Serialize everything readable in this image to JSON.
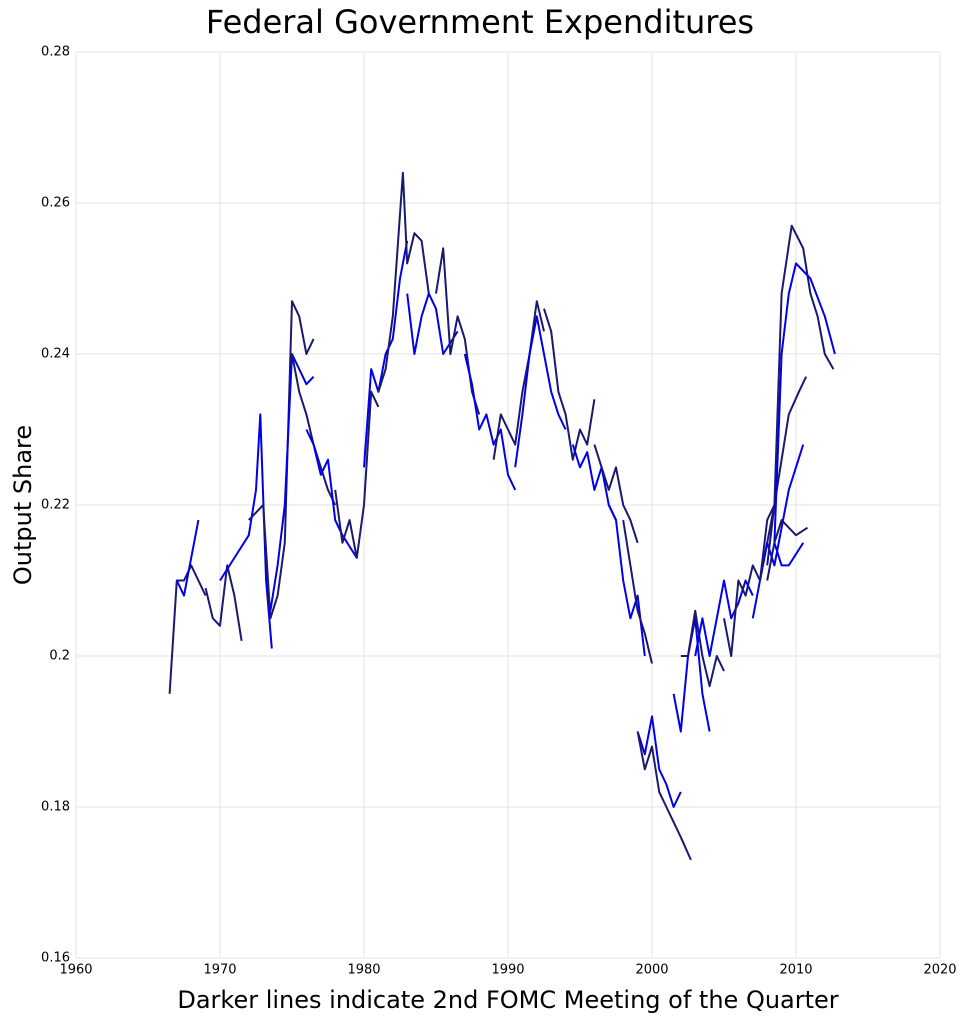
{
  "chart_data": {
    "type": "line",
    "title": "Federal Government Expenditures",
    "xlabel": "Darker lines indicate 2nd FOMC Meeting of the Quarter",
    "ylabel": "Output Share",
    "xlim": [
      1960,
      2020
    ],
    "xticks": [
      1960,
      1970,
      1980,
      1990,
      2000,
      2010,
      2020
    ],
    "ylim": [
      0.16,
      0.28
    ],
    "yticks": [
      0.16,
      0.18,
      0.2,
      0.22,
      0.24,
      0.26,
      0.28
    ],
    "grid": true,
    "series": [
      {
        "color": "#191970",
        "x": [
          1966.5,
          1967,
          1967.5,
          1968,
          1968.5,
          1969
        ],
        "values": [
          0.195,
          0.21,
          0.21,
          0.212,
          0.21,
          0.208
        ]
      },
      {
        "color": "#0000ee",
        "x": [
          1967,
          1967.5,
          1968,
          1968.5
        ],
        "values": [
          0.21,
          0.208,
          0.213,
          0.218
        ]
      },
      {
        "color": "#191970",
        "x": [
          1969,
          1969.5,
          1970,
          1970.5,
          1971,
          1971.5
        ],
        "values": [
          0.209,
          0.205,
          0.204,
          0.212,
          0.208,
          0.202
        ]
      },
      {
        "color": "#0000ee",
        "x": [
          1970,
          1971,
          1972,
          1972.5,
          1972.8,
          1973.2,
          1973.6
        ],
        "values": [
          0.21,
          0.213,
          0.216,
          0.222,
          0.232,
          0.21,
          0.201
        ]
      },
      {
        "color": "#191970",
        "x": [
          1972,
          1973,
          1973.5,
          1974,
          1974.5,
          1975,
          1975.5,
          1976,
          1976.5
        ],
        "values": [
          0.218,
          0.22,
          0.205,
          0.208,
          0.215,
          0.247,
          0.245,
          0.24,
          0.242
        ]
      },
      {
        "color": "#0000ee",
        "x": [
          1973.5,
          1974,
          1974.5,
          1975,
          1975.5,
          1976,
          1976.5
        ],
        "values": [
          0.206,
          0.212,
          0.22,
          0.24,
          0.238,
          0.236,
          0.237
        ]
      },
      {
        "color": "#191970",
        "x": [
          1975,
          1975.5,
          1976,
          1976.5,
          1977,
          1977.5,
          1978
        ],
        "values": [
          0.24,
          0.235,
          0.232,
          0.228,
          0.225,
          0.222,
          0.22
        ]
      },
      {
        "color": "#0000ee",
        "x": [
          1976,
          1976.5,
          1977,
          1977.5,
          1978,
          1978.5,
          1979.5
        ],
        "values": [
          0.23,
          0.228,
          0.224,
          0.226,
          0.218,
          0.216,
          0.213
        ]
      },
      {
        "color": "#191970",
        "x": [
          1978,
          1978.5,
          1979,
          1979.5,
          1980,
          1980.5,
          1981
        ],
        "values": [
          0.222,
          0.215,
          0.218,
          0.213,
          0.22,
          0.235,
          0.233
        ]
      },
      {
        "color": "#0000ee",
        "x": [
          1980,
          1980.5,
          1981,
          1981.5,
          1982,
          1982.5,
          1983
        ],
        "values": [
          0.225,
          0.238,
          0.235,
          0.24,
          0.242,
          0.25,
          0.255
        ]
      },
      {
        "color": "#191970",
        "x": [
          1981,
          1981.5,
          1982,
          1982.7,
          1983,
          1983.5,
          1984,
          1984.5
        ],
        "values": [
          0.235,
          0.238,
          0.245,
          0.264,
          0.252,
          0.256,
          0.255,
          0.248
        ]
      },
      {
        "color": "#0000ee",
        "x": [
          1983,
          1983.5,
          1984,
          1984.5,
          1985,
          1985.5,
          1986.5
        ],
        "values": [
          0.248,
          0.24,
          0.245,
          0.248,
          0.246,
          0.24,
          0.243
        ]
      },
      {
        "color": "#191970",
        "x": [
          1985,
          1985.5,
          1986,
          1986.5,
          1987,
          1987.5,
          1988
        ],
        "values": [
          0.248,
          0.254,
          0.24,
          0.245,
          0.242,
          0.235,
          0.232
        ]
      },
      {
        "color": "#0000ee",
        "x": [
          1987,
          1987.5,
          1988,
          1988.5,
          1989,
          1989.5,
          1990,
          1990.5
        ],
        "values": [
          0.24,
          0.236,
          0.23,
          0.232,
          0.228,
          0.23,
          0.224,
          0.222
        ]
      },
      {
        "color": "#191970",
        "x": [
          1989,
          1989.5,
          1990,
          1990.5,
          1991,
          1991.5,
          1992,
          1992.5
        ],
        "values": [
          0.226,
          0.232,
          0.23,
          0.228,
          0.235,
          0.24,
          0.247,
          0.243
        ]
      },
      {
        "color": "#0000ee",
        "x": [
          1990.5,
          1991,
          1991.5,
          1992,
          1992.5,
          1993,
          1993.5,
          1994
        ],
        "values": [
          0.225,
          0.232,
          0.24,
          0.245,
          0.24,
          0.235,
          0.232,
          0.23
        ]
      },
      {
        "color": "#191970",
        "x": [
          1992.5,
          1993,
          1993.5,
          1994,
          1994.5,
          1995,
          1995.5,
          1996
        ],
        "values": [
          0.246,
          0.243,
          0.235,
          0.232,
          0.226,
          0.23,
          0.228,
          0.234
        ]
      },
      {
        "color": "#0000ee",
        "x": [
          1994.5,
          1995,
          1995.5,
          1996,
          1996.5,
          1997,
          1997.5
        ],
        "values": [
          0.228,
          0.225,
          0.227,
          0.222,
          0.225,
          0.22,
          0.218
        ]
      },
      {
        "color": "#191970",
        "x": [
          1996,
          1996.5,
          1997,
          1997.5,
          1998,
          1998.5,
          1999
        ],
        "values": [
          0.228,
          0.225,
          0.222,
          0.225,
          0.22,
          0.218,
          0.215
        ]
      },
      {
        "color": "#0000ee",
        "x": [
          1997,
          1997.5,
          1998,
          1998.5,
          1999,
          1999.5
        ],
        "values": [
          0.22,
          0.218,
          0.21,
          0.205,
          0.208,
          0.2
        ]
      },
      {
        "color": "#191970",
        "x": [
          1998,
          1998.5,
          1999,
          1999.5,
          2000
        ],
        "values": [
          0.218,
          0.212,
          0.206,
          0.203,
          0.199
        ]
      },
      {
        "color": "#0000ee",
        "x": [
          1999,
          1999.5,
          2000,
          2000.5,
          2001,
          2001.5,
          2002
        ],
        "values": [
          0.19,
          0.187,
          0.192,
          0.185,
          0.183,
          0.18,
          0.182
        ]
      },
      {
        "color": "#191970",
        "x": [
          1999,
          1999.5,
          2000,
          2000.5,
          2001,
          2001.5,
          2002,
          2002.7
        ],
        "values": [
          0.19,
          0.185,
          0.188,
          0.182,
          0.18,
          0.178,
          0.176,
          0.173
        ]
      },
      {
        "color": "#0000ee",
        "x": [
          2001.5,
          2002,
          2002.5,
          2003,
          2003.5,
          2004
        ],
        "values": [
          0.195,
          0.19,
          0.2,
          0.205,
          0.195,
          0.19
        ]
      },
      {
        "color": "#191970",
        "x": [
          2002,
          2002.5,
          2003,
          2003.5,
          2004,
          2004.5,
          2005
        ],
        "values": [
          0.2,
          0.2,
          0.206,
          0.2,
          0.196,
          0.2,
          0.198
        ]
      },
      {
        "color": "#0000ee",
        "x": [
          2003,
          2003.5,
          2004,
          2004.5,
          2005,
          2005.5,
          2006,
          2006.5,
          2007
        ],
        "values": [
          0.2,
          0.205,
          0.2,
          0.205,
          0.21,
          0.205,
          0.207,
          0.21,
          0.208
        ]
      },
      {
        "color": "#191970",
        "x": [
          2005,
          2005.5,
          2006,
          2006.5,
          2007,
          2007.5,
          2008,
          2008.5
        ],
        "values": [
          0.205,
          0.2,
          0.21,
          0.208,
          0.212,
          0.21,
          0.215,
          0.22
        ]
      },
      {
        "color": "#0000ee",
        "x": [
          2007,
          2007.5,
          2008,
          2008.5,
          2009.5,
          2010.5
        ],
        "values": [
          0.205,
          0.21,
          0.215,
          0.212,
          0.222,
          0.228
        ]
      },
      {
        "color": "#191970",
        "x": [
          2007.5,
          2008,
          2008.5,
          2009.5,
          2010.2,
          2010.7
        ],
        "values": [
          0.21,
          0.218,
          0.22,
          0.232,
          0.235,
          0.237
        ]
      },
      {
        "color": "#191970",
        "x": [
          2008,
          2008.5,
          2009,
          2009.7,
          2010.5,
          2011,
          2011.5,
          2012,
          2012.6
        ],
        "values": [
          0.212,
          0.22,
          0.248,
          0.257,
          0.254,
          0.248,
          0.245,
          0.24,
          0.238
        ]
      },
      {
        "color": "#0000ee",
        "x": [
          2008.5,
          2009,
          2009.5,
          2010,
          2011,
          2012,
          2012.7
        ],
        "values": [
          0.215,
          0.24,
          0.248,
          0.252,
          0.25,
          0.245,
          0.24
        ]
      },
      {
        "color": "#191970",
        "x": [
          2008,
          2008.5,
          2009,
          2009.5,
          2010,
          2010.8
        ],
        "values": [
          0.21,
          0.215,
          0.218,
          0.217,
          0.216,
          0.217
        ]
      },
      {
        "color": "#0000ee",
        "x": [
          2008.5,
          2009,
          2009.5,
          2010.5
        ],
        "values": [
          0.215,
          0.212,
          0.212,
          0.215
        ]
      }
    ]
  }
}
